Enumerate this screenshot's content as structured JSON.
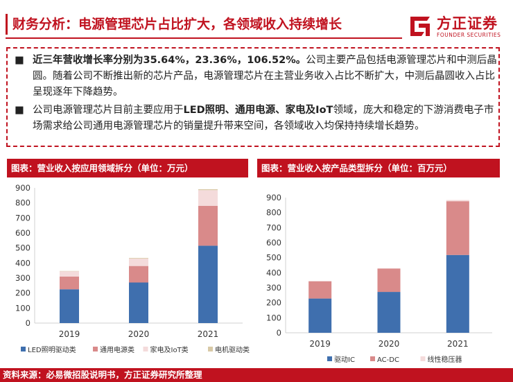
{
  "header": {
    "title": "财务分析：电源管理芯片占比扩大，各领域收入持续增长",
    "logo_cn": "方正证券",
    "logo_en": "FOUNDER SECURITIES"
  },
  "summary": {
    "bullet_glyph": "■",
    "b1_bold": "近三年营收增长率分别为35.64%，23.36%，106.52%。",
    "b1_rest": "公司主要产品包括电源管理芯片和中测后晶圆。随着公司不断推出新的芯片产品，电源管理芯片在主营业务收入占比不断扩大，中测后晶圆收入占比呈现逐年下降趋势。",
    "b2_a": "公司电源管理芯片目前主要应用于",
    "b2_bold": "LED照明、通用电源、家电及IoT",
    "b2_b": "领域，庞大和稳定的下游消费电子市场需求给公司通用电源管理芯片的销量提升带来空间，各领域收入均保持持续增长趋势。"
  },
  "charts": {
    "left_title": "图表：营业收入按应用领域拆分（单位：万元）",
    "right_title": "图表：营业收入按产品类型拆分（单位：百万元）"
  },
  "footer": {
    "source": "资料来源：必易微招股说明书，方正证券研究所整理"
  },
  "colors": {
    "brand": "#c0121f",
    "s1": "#3f6fae",
    "s2": "#d98a8a",
    "s3": "#f4dbdb",
    "s4": "#d8c9a6"
  },
  "chart_data": [
    {
      "type": "bar",
      "stacked": true,
      "title": "图表：营业收入按应用领域拆分（单位：万元）",
      "categories": [
        "2019",
        "2020",
        "2021"
      ],
      "series": [
        {
          "name": "LED照明驱动类",
          "values": [
            225,
            270,
            515
          ]
        },
        {
          "name": "通用电源类",
          "values": [
            85,
            110,
            265
          ]
        },
        {
          "name": "家电及IoT类",
          "values": [
            35,
            50,
            105
          ]
        },
        {
          "name": "电机驱动类",
          "values": [
            2,
            4,
            6
          ]
        }
      ],
      "ylim": [
        0,
        900
      ],
      "yticks": [
        0,
        100,
        200,
        300,
        400,
        500,
        600,
        700,
        800,
        900
      ],
      "legend": "bottom"
    },
    {
      "type": "bar",
      "stacked": true,
      "title": "图表：营业收入按产品类型拆分（单位：百万元）",
      "categories": [
        "2019",
        "2020",
        "2021"
      ],
      "series": [
        {
          "name": "驱动IC",
          "values": [
            228,
            272,
            518
          ]
        },
        {
          "name": "AC-DC",
          "values": [
            115,
            155,
            358
          ]
        },
        {
          "name": "线性稳压器",
          "values": [
            2,
            3,
            8
          ]
        }
      ],
      "ylim": [
        0,
        900
      ],
      "yticks": [
        0,
        100,
        200,
        300,
        400,
        500,
        600,
        700,
        800,
        900
      ],
      "legend": "bottom"
    }
  ]
}
